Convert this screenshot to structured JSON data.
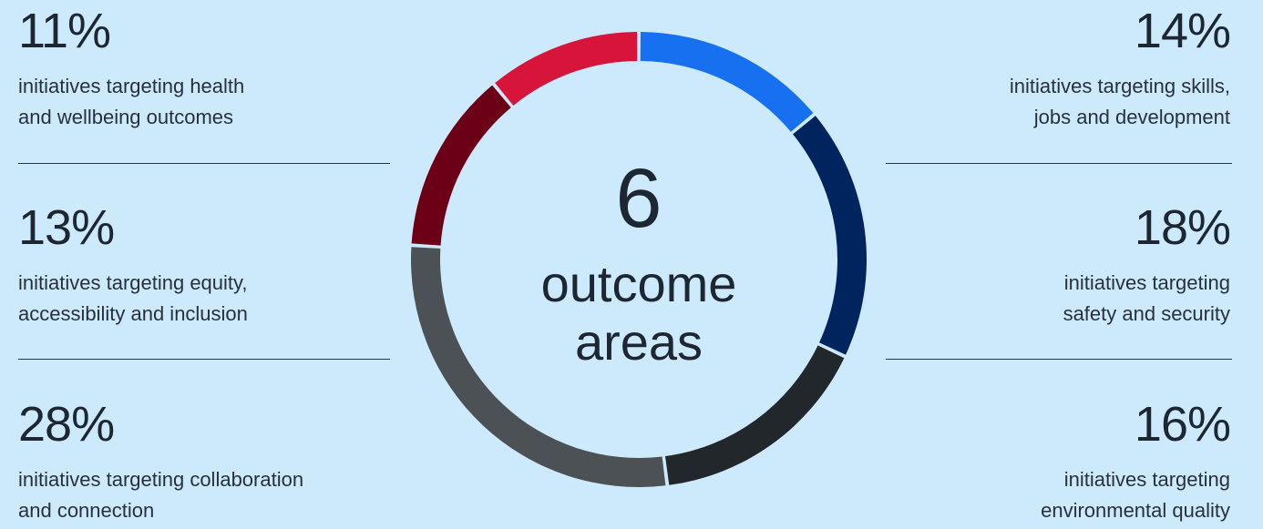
{
  "chart_data": {
    "type": "pie",
    "center": {
      "number": "6",
      "line1": "outcome",
      "line2": "areas"
    },
    "slices": [
      {
        "label": "initiatives targeting skills, jobs and development",
        "value": 14,
        "color": "#1670f0"
      },
      {
        "label": "initiatives targeting safety and security",
        "value": 18,
        "color": "#00245e"
      },
      {
        "label": "initiatives targeting environmental quality",
        "value": 16,
        "color": "#22272b"
      },
      {
        "label": "initiatives targeting collaboration and connection",
        "value": 28,
        "color": "#4b5155"
      },
      {
        "label": "initiatives targeting equity, accessibility and inclusion",
        "value": 13,
        "color": "#6b0016"
      },
      {
        "label": "initiatives targeting health and wellbeing outcomes",
        "value": 11,
        "color": "#d7153a"
      }
    ]
  },
  "stats": {
    "left": [
      {
        "pct": "11%",
        "line1": "initiatives targeting health",
        "line2": "and wellbeing outcomes"
      },
      {
        "pct": "13%",
        "line1": "initiatives targeting equity,",
        "line2": "accessibility and inclusion"
      },
      {
        "pct": "28%",
        "line1": "initiatives targeting collaboration",
        "line2": "and connection"
      }
    ],
    "right": [
      {
        "pct": "14%",
        "line1": "initiatives targeting skills,",
        "line2": "jobs and development"
      },
      {
        "pct": "18%",
        "line1": "initiatives targeting",
        "line2": "safety and security"
      },
      {
        "pct": "16%",
        "line1": "initiatives targeting",
        "line2": "environmental quality"
      }
    ]
  },
  "colors": {
    "background": "#cdeafc",
    "text": "#1c2733",
    "divider": "#2a3440"
  }
}
